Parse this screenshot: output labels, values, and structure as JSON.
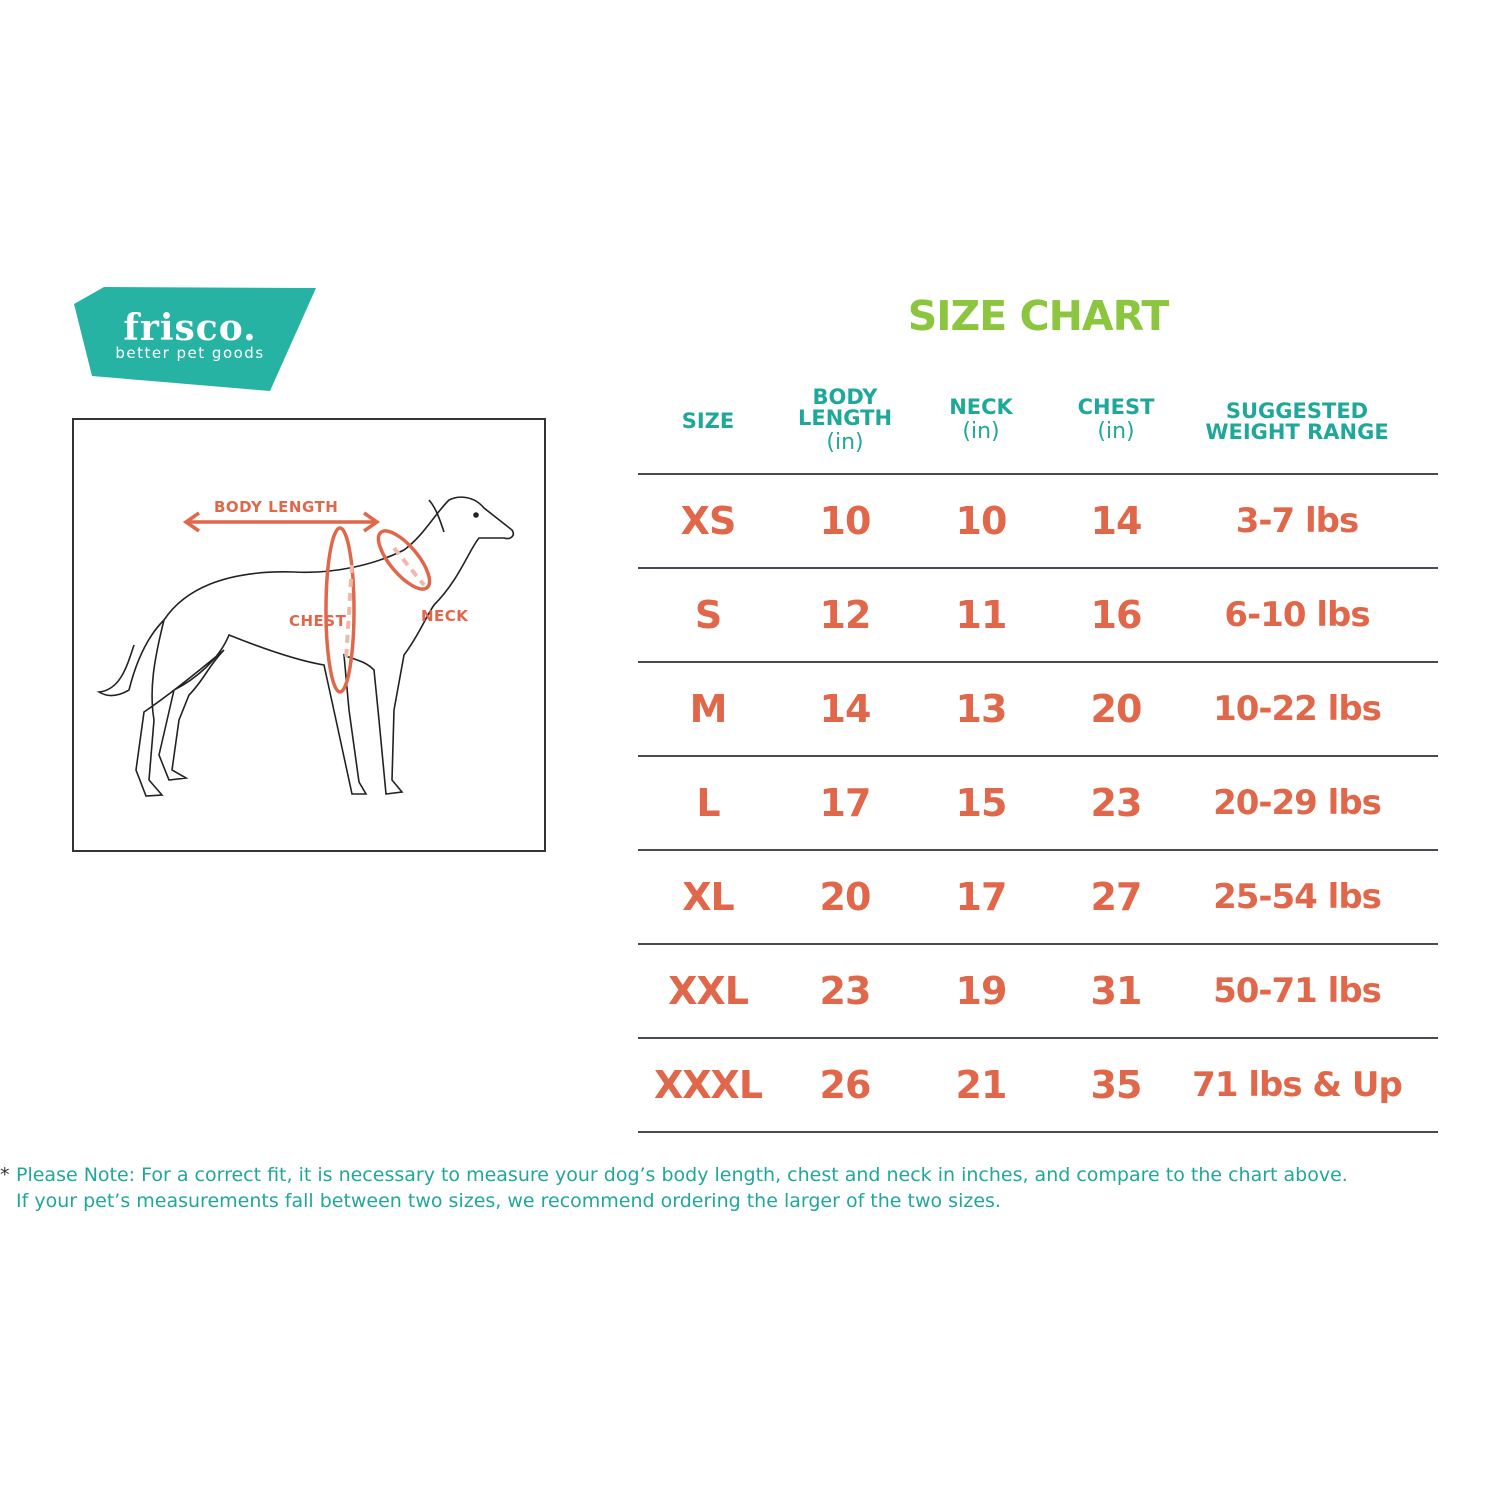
{
  "brand": {
    "name": "frisco.",
    "tagline": "better pet goods",
    "color": "#27b3a3"
  },
  "diagram": {
    "labels": {
      "body_length": "BODY LENGTH",
      "chest": "CHEST",
      "neck": "NECK"
    },
    "accent": "#e0674a"
  },
  "title": "SIZE CHART",
  "table": {
    "headers": [
      {
        "lines": [
          "SIZE"
        ],
        "unit": ""
      },
      {
        "lines": [
          "BODY",
          "LENGTH"
        ],
        "unit": "(in)"
      },
      {
        "lines": [
          "NECK"
        ],
        "unit": "(in)"
      },
      {
        "lines": [
          "CHEST"
        ],
        "unit": "(in)"
      },
      {
        "lines": [
          "SUGGESTED",
          "WEIGHT RANGE"
        ],
        "unit": ""
      }
    ],
    "rows": [
      [
        "XS",
        "10",
        "10",
        "14",
        "3-7 lbs"
      ],
      [
        "S",
        "12",
        "11",
        "16",
        "6-10 lbs"
      ],
      [
        "M",
        "14",
        "13",
        "20",
        "10-22 lbs"
      ],
      [
        "L",
        "17",
        "15",
        "23",
        "20-29 lbs"
      ],
      [
        "XL",
        "20",
        "17",
        "27",
        "25-54 lbs"
      ],
      [
        "XXL",
        "23",
        "19",
        "31",
        "50-71 lbs"
      ],
      [
        "XXXL",
        "26",
        "21",
        "35",
        "71 lbs & Up"
      ]
    ]
  },
  "note": {
    "star": "*",
    "line1": "Please Note: For a correct fit, it is necessary to measure your dog’s body length, chest and neck in inches, and compare to the chart above.",
    "line2": "If your pet’s measurements fall between two sizes, we recommend ordering the larger of the two sizes."
  },
  "colors": {
    "title": "#8cc63f",
    "header": "#1fa89a",
    "values": "#e0674a"
  }
}
